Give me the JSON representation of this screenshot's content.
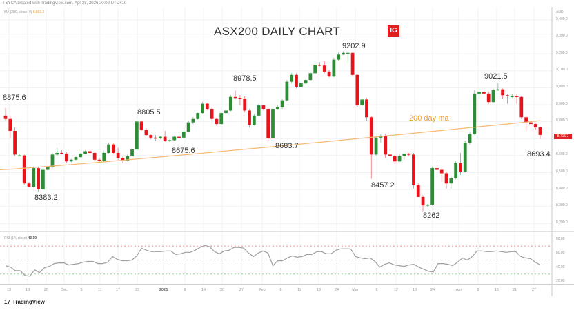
{
  "header": {
    "created_text": "TSYCA created with TradingView.com, Apr 28, 2026 20:02 UTC+10",
    "ma_legend_label": "MA (200, close, 0)",
    "ma_legend_value": "8,803.2",
    "rsi_legend_label": "RSI (14, close)",
    "rsi_legend_value": "43.19",
    "currency": "AUD"
  },
  "title": "ASX200 DAILY CHART",
  "brand_badge": "IG",
  "ma_line_label": "200 day ma",
  "current_price_badge": "8,716.7",
  "footer": {
    "logo_text": "TradingView",
    "logo_glyph": "17"
  },
  "colors": {
    "up": "#2e8b36",
    "down": "#e8141c",
    "ma": "#f5b872",
    "rsi_line": "#9e9e9e",
    "rsi_upper": "#f08080",
    "rsi_mid": "#c8c8c8",
    "rsi_lower": "#7ccf7c",
    "grid": "#eef1f6"
  },
  "chart_data": [
    {
      "type": "candlestick",
      "title": "ASX200 DAILY CHART",
      "xlabel": "",
      "ylabel": "AUD",
      "ylim": [
        8150,
        9450
      ],
      "y_ticks": [
        "9,400.0",
        "9,300.0",
        "9,200.0",
        "9,100.0",
        "9,000.0",
        "8,900.0",
        "8,800.0",
        "8,600.0",
        "8,500.0",
        "8,400.0",
        "8,300.0",
        "8,200.0"
      ],
      "x_ticks": [
        "13",
        "19",
        "25",
        "Dec",
        "5",
        "11",
        "17",
        "23",
        "2026",
        "8",
        "14",
        "20",
        "27",
        "Feb",
        "6",
        "12",
        "18",
        "24",
        "Mar",
        "6",
        "12",
        "18",
        "24",
        "Apr",
        "9",
        "15",
        "21",
        "27"
      ],
      "annotations": [
        {
          "text": "8875.6",
          "kind": "high"
        },
        {
          "text": "8383.2",
          "kind": "low"
        },
        {
          "text": "8805.5",
          "kind": "high"
        },
        {
          "text": "8675.6",
          "kind": "low"
        },
        {
          "text": "8978.5",
          "kind": "high"
        },
        {
          "text": "8683.7",
          "kind": "low"
        },
        {
          "text": "9202.9",
          "kind": "high"
        },
        {
          "text": "8457.2",
          "kind": "low"
        },
        {
          "text": "8262",
          "kind": "low"
        },
        {
          "text": "9021.5",
          "kind": "high"
        },
        {
          "text": "8693.4",
          "kind": "low"
        }
      ],
      "series": [
        {
          "name": "ASX200",
          "ohlc": [
            [
              8830,
              8875,
              8800,
              8810
            ],
            [
              8810,
              8830,
              8700,
              8740
            ],
            [
              8740,
              8760,
              8590,
              8600
            ],
            [
              8590,
              8600,
              8590,
              8595
            ],
            [
              8595,
              8600,
              8420,
              8430
            ],
            [
              8430,
              8440,
              8405,
              8410
            ],
            [
              8410,
              8530,
              8405,
              8520
            ],
            [
              8520,
              8530,
              8383,
              8395
            ],
            [
              8395,
              8520,
              8390,
              8510
            ],
            [
              8510,
              8530,
              8505,
              8525
            ],
            [
              8525,
              8610,
              8520,
              8600
            ],
            [
              8600,
              8640,
              8595,
              8610
            ],
            [
              8610,
              8625,
              8600,
              8605
            ],
            [
              8605,
              8615,
              8550,
              8560
            ],
            [
              8560,
              8575,
              8555,
              8570
            ],
            [
              8570,
              8590,
              8565,
              8585
            ],
            [
              8585,
              8610,
              8580,
              8605
            ],
            [
              8605,
              8625,
              8600,
              8620
            ],
            [
              8620,
              8625,
              8605,
              8610
            ],
            [
              8610,
              8615,
              8565,
              8570
            ],
            [
              8570,
              8580,
              8555,
              8565
            ],
            [
              8565,
              8620,
              8560,
              8610
            ],
            [
              8610,
              8670,
              8605,
              8660
            ],
            [
              8660,
              8665,
              8600,
              8610
            ],
            [
              8610,
              8640,
              8570,
              8580
            ],
            [
              8580,
              8590,
              8550,
              8565
            ],
            [
              8565,
              8600,
              8560,
              8590
            ],
            [
              8590,
              8640,
              8585,
              8630
            ],
            [
              8630,
              8805,
              8625,
              8795
            ],
            [
              8795,
              8800,
              8740,
              8745
            ],
            [
              8745,
              8755,
              8710,
              8715
            ],
            [
              8715,
              8720,
              8690,
              8700
            ],
            [
              8700,
              8715,
              8680,
              8695
            ],
            [
              8695,
              8710,
              8690,
              8705
            ],
            [
              8705,
              8740,
              8675,
              8680
            ],
            [
              8680,
              8690,
              8675,
              8685
            ],
            [
              8685,
              8710,
              8680,
              8705
            ],
            [
              8705,
              8720,
              8695,
              8700
            ],
            [
              8700,
              8740,
              8695,
              8735
            ],
            [
              8735,
              8800,
              8730,
              8790
            ],
            [
              8790,
              8820,
              8780,
              8810
            ],
            [
              8810,
              8850,
              8805,
              8845
            ],
            [
              8845,
              8910,
              8840,
              8900
            ],
            [
              8900,
              8905,
              8860,
              8870
            ],
            [
              8870,
              8880,
              8800,
              8810
            ],
            [
              8810,
              8815,
              8770,
              8780
            ],
            [
              8780,
              8850,
              8775,
              8845
            ],
            [
              8845,
              8870,
              8840,
              8860
            ],
            [
              8860,
              8950,
              8855,
              8940
            ],
            [
              8940,
              8978,
              8925,
              8935
            ],
            [
              8935,
              8950,
              8890,
              8930
            ],
            [
              8930,
              8945,
              8850,
              8860
            ],
            [
              8860,
              8870,
              8760,
              8775
            ],
            [
              8775,
              8840,
              8770,
              8830
            ],
            [
              8830,
              8900,
              8825,
              8890
            ],
            [
              8890,
              8895,
              8860,
              8870
            ],
            [
              8870,
              8880,
              8683,
              8695
            ],
            [
              8695,
              8880,
              8690,
              8870
            ],
            [
              8870,
              8890,
              8865,
              8880
            ],
            [
              8880,
              8930,
              8870,
              8920
            ],
            [
              8920,
              9040,
              8915,
              9030
            ],
            [
              9030,
              9080,
              9020,
              9070
            ],
            [
              9070,
              9080,
              8990,
              9000
            ],
            [
              9000,
              9030,
              8995,
              9020
            ],
            [
              9020,
              9050,
              9015,
              9040
            ],
            [
              9040,
              9090,
              9035,
              9080
            ],
            [
              9080,
              9140,
              9075,
              9130
            ],
            [
              9130,
              9145,
              9120,
              9125
            ],
            [
              9125,
              9150,
              9080,
              9090
            ],
            [
              9090,
              9100,
              9055,
              9060
            ],
            [
              9060,
              9170,
              9055,
              9160
            ],
            [
              9160,
              9202,
              9155,
              9190
            ],
            [
              9190,
              9210,
              9185,
              9200
            ],
            [
              9200,
              9202,
              9140,
              9200
            ],
            [
              9200,
              9202,
              9060,
              9070
            ],
            [
              9070,
              9075,
              8880,
              8890
            ],
            [
              8890,
              8930,
              8885,
              8925
            ],
            [
              8925,
              8935,
              8800,
              8820
            ],
            [
              8820,
              8830,
              8457,
              8600
            ],
            [
              8600,
              8710,
              8595,
              8700
            ],
            [
              8700,
              8720,
              8670,
              8710
            ],
            [
              8710,
              8720,
              8580,
              8600
            ],
            [
              8600,
              8630,
              8570,
              8590
            ],
            [
              8590,
              8600,
              8545,
              8560
            ],
            [
              8560,
              8600,
              8555,
              8590
            ],
            [
              8590,
              8610,
              8570,
              8605
            ],
            [
              8605,
              8610,
              8590,
              8600
            ],
            [
              8600,
              8610,
              8400,
              8420
            ],
            [
              8420,
              8430,
              8350,
              8350
            ],
            [
              8350,
              8360,
              8262,
              8300
            ],
            [
              8300,
              8310,
              8290,
              8305
            ],
            [
              8305,
              8530,
              8300,
              8520
            ],
            [
              8520,
              8540,
              8470,
              8510
            ],
            [
              8510,
              8520,
              8440,
              8490
            ],
            [
              8490,
              8500,
              8400,
              8430
            ],
            [
              8430,
              8470,
              8400,
              8460
            ],
            [
              8460,
              8560,
              8455,
              8550
            ],
            [
              8550,
              8610,
              8480,
              8500
            ],
            [
              8500,
              8680,
              8495,
              8670
            ],
            [
              8670,
              8730,
              8660,
              8720
            ],
            [
              8720,
              8980,
              8715,
              8960
            ],
            [
              8960,
              8990,
              8935,
              8970
            ],
            [
              8970,
              8975,
              8950,
              8960
            ],
            [
              8960,
              8970,
              8900,
              8910
            ],
            [
              8910,
              8990,
              8905,
              8980
            ],
            [
              8980,
              9021,
              8975,
              8985
            ],
            [
              8985,
              8990,
              8930,
              8950
            ],
            [
              8950,
              8960,
              8900,
              8945
            ],
            [
              8945,
              8960,
              8935,
              8945
            ],
            [
              8945,
              8960,
              8900,
              8940
            ],
            [
              8940,
              8945,
              8810,
              8820
            ],
            [
              8820,
              8830,
              8740,
              8790
            ],
            [
              8790,
              8795,
              8740,
              8780
            ],
            [
              8780,
              8785,
              8745,
              8760
            ],
            [
              8760,
              8765,
              8693,
              8716
            ]
          ]
        },
        {
          "name": "MA 200",
          "values_start_end": [
            8510,
            8800
          ]
        }
      ]
    },
    {
      "type": "line",
      "title": "RSI (14, close)",
      "ylim": [
        15,
        85
      ],
      "y_ticks": [
        "80.00",
        "60.00",
        "40.00",
        "20.00"
      ],
      "levels": [
        70,
        50,
        30
      ],
      "series": [
        {
          "name": "RSI",
          "values": [
            42,
            40,
            35,
            35,
            28,
            27,
            36,
            32,
            39,
            41,
            45,
            46,
            46,
            43,
            44,
            45,
            47,
            48,
            48,
            45,
            45,
            47,
            55,
            51,
            49,
            49,
            50,
            56,
            67,
            64,
            62,
            62,
            62,
            63,
            63,
            58,
            59,
            61,
            61,
            64,
            68,
            71,
            69,
            62,
            59,
            63,
            64,
            68,
            68,
            67,
            60,
            55,
            60,
            63,
            60,
            42,
            49,
            49,
            53,
            56,
            54,
            55,
            58,
            58,
            62,
            62,
            59,
            59,
            64,
            66,
            66,
            66,
            55,
            53,
            52,
            53,
            48,
            40,
            44,
            46,
            43,
            42,
            41,
            43,
            44,
            40,
            37,
            34,
            33,
            45,
            45,
            44,
            42,
            47,
            53,
            50,
            55,
            63,
            63,
            62,
            62,
            63,
            62,
            61,
            62,
            62,
            55,
            53,
            52,
            47,
            43
          ]
        }
      ]
    }
  ]
}
